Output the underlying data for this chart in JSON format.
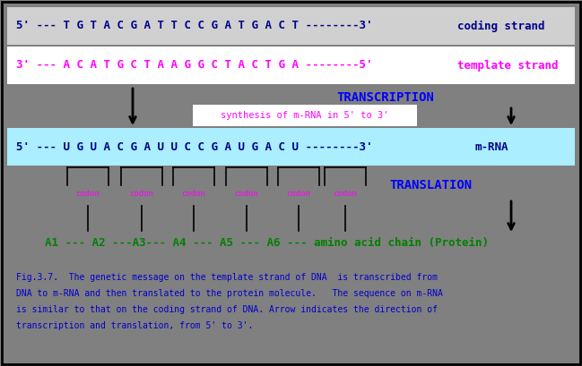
{
  "bg_color": "#808080",
  "fig_bg": "#808080",
  "coding_strand_text": "5' --- T G T A C G A T T C C G A T G A C T --------3'",
  "coding_strand_label": "coding strand",
  "coding_strand_bg": "#d0d0d0",
  "coding_strand_color": "#00008B",
  "template_strand_text": "3' --- A C A T G C T A A G G C T A C T G A --------5'",
  "template_strand_label": "template strand",
  "template_strand_bg": "#ffffff",
  "template_strand_color": "#ff00ff",
  "transcription_label": "TRANSCRIPTION",
  "transcription_color": "#0000ff",
  "synthesis_box_text": "synthesis of m-RNA in 5' to 3'",
  "synthesis_box_bg": "#ffffff",
  "synthesis_box_color": "#ff00ff",
  "mrna_text": "5' --- U G U A C G A U U C C G A U G A C U --------3'",
  "mrna_label": "m-RNA",
  "mrna_bg": "#aaeeff",
  "mrna_color": "#00008B",
  "translation_label": "TRANSLATION",
  "translation_color": "#0000ff",
  "codon_color": "#ff00ff",
  "amino_acid_text": "A1 --- A2 ---A3--- A4 --- A5 --- A6 --- amino acid chain (Protein)",
  "amino_acid_color": "#008000",
  "caption_line1": "Fig.3.7.  The genetic message on the template strand of DNA  is transcribed from",
  "caption_line2": "DNA to m-RNA and then translated to the protein molecule.   The sequence on m-RNA",
  "caption_line3": "is similar to that on the coding strand of DNA. Arrow indicates the direction of",
  "caption_line4": "transcription and translation, from 5' to 3'.",
  "caption_color": "#0000cc",
  "arrow_color": "#000000",
  "border_color": "#000000"
}
